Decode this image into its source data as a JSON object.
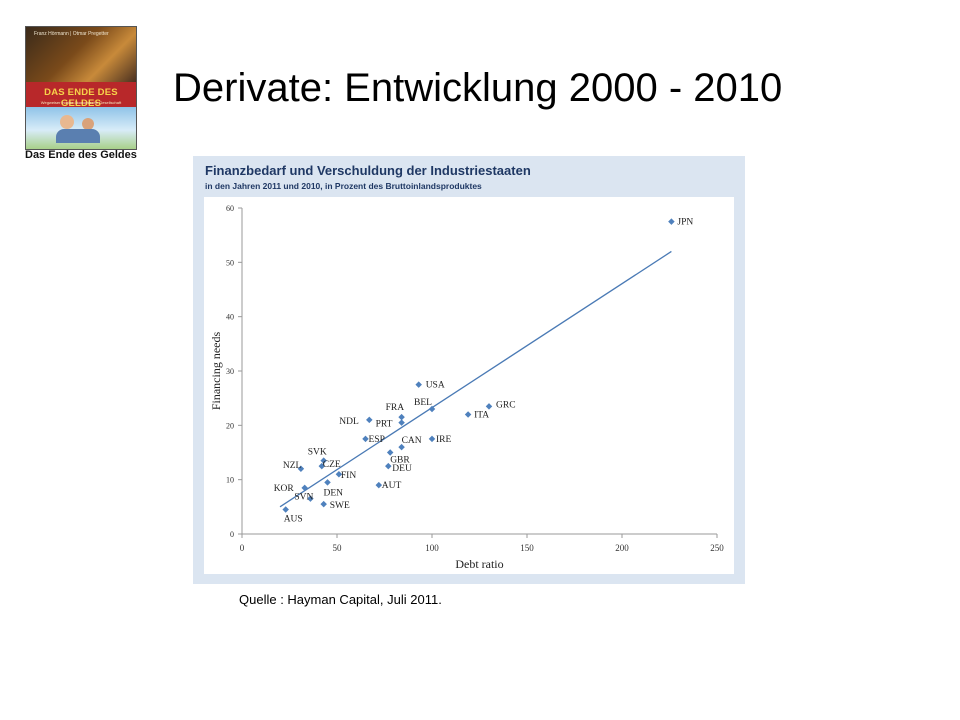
{
  "slide": {
    "title": "Derivate: Entwicklung 2000 - 2010",
    "source": "Quelle : Hayman Capital, Juli 2011."
  },
  "book": {
    "authors": "Franz Hörmann | Otmar Pregetter",
    "cover_title": "DAS ENDE DES GELDES",
    "cover_subtitle": "Wegweiser in eine ökonomische Gesellschaft",
    "caption": "Das Ende des Geldes"
  },
  "colors": {
    "panel_bg": "#dbe5f1",
    "title_blue": "#1f3864",
    "marker": "#4f81bd",
    "trend_line": "#4a7ab5"
  },
  "chart_data": {
    "type": "scatter",
    "title": "Finanzbedarf und Verschuldung der Industriestaaten",
    "subtitle": "in den Jahren 2011 und 2010, in Prozent des Bruttoinlandsproduktes",
    "xlabel": "Debt ratio",
    "ylabel": "Financing needs",
    "xlim": [
      0,
      250
    ],
    "ylim": [
      0,
      60
    ],
    "xticks": [
      0,
      50,
      100,
      150,
      200,
      250
    ],
    "yticks": [
      0,
      10,
      20,
      30,
      40,
      50,
      60
    ],
    "grid": false,
    "trendline": {
      "x": [
        20,
        226
      ],
      "y": [
        5,
        52
      ]
    },
    "points": [
      {
        "label": "JPN",
        "x": 226,
        "y": 57.5
      },
      {
        "label": "USA",
        "x": 93,
        "y": 27.5
      },
      {
        "label": "BEL",
        "x": 100,
        "y": 23
      },
      {
        "label": "GRC",
        "x": 130,
        "y": 23.5
      },
      {
        "label": "ITA",
        "x": 119,
        "y": 22
      },
      {
        "label": "FRA",
        "x": 84,
        "y": 21.5
      },
      {
        "label": "NDL",
        "x": 67,
        "y": 21
      },
      {
        "label": "PRT",
        "x": 84,
        "y": 20.5
      },
      {
        "label": "ESP",
        "x": 65,
        "y": 17.5
      },
      {
        "label": "IRE",
        "x": 100,
        "y": 17.5
      },
      {
        "label": "CAN",
        "x": 84,
        "y": 16
      },
      {
        "label": "GBR",
        "x": 78,
        "y": 15
      },
      {
        "label": "SVK",
        "x": 43,
        "y": 13.5
      },
      {
        "label": "NZL",
        "x": 31,
        "y": 12
      },
      {
        "label": "CZE",
        "x": 42,
        "y": 12.5
      },
      {
        "label": "DEU",
        "x": 77,
        "y": 12.5
      },
      {
        "label": "FIN",
        "x": 51,
        "y": 11
      },
      {
        "label": "DEN",
        "x": 45,
        "y": 9.5
      },
      {
        "label": "AUT",
        "x": 72,
        "y": 9
      },
      {
        "label": "KOR",
        "x": 33,
        "y": 8.5
      },
      {
        "label": "SVN",
        "x": 36,
        "y": 6.5
      },
      {
        "label": "SWE",
        "x": 43,
        "y": 5.5
      },
      {
        "label": "AUS",
        "x": 23,
        "y": 4.5
      }
    ]
  }
}
